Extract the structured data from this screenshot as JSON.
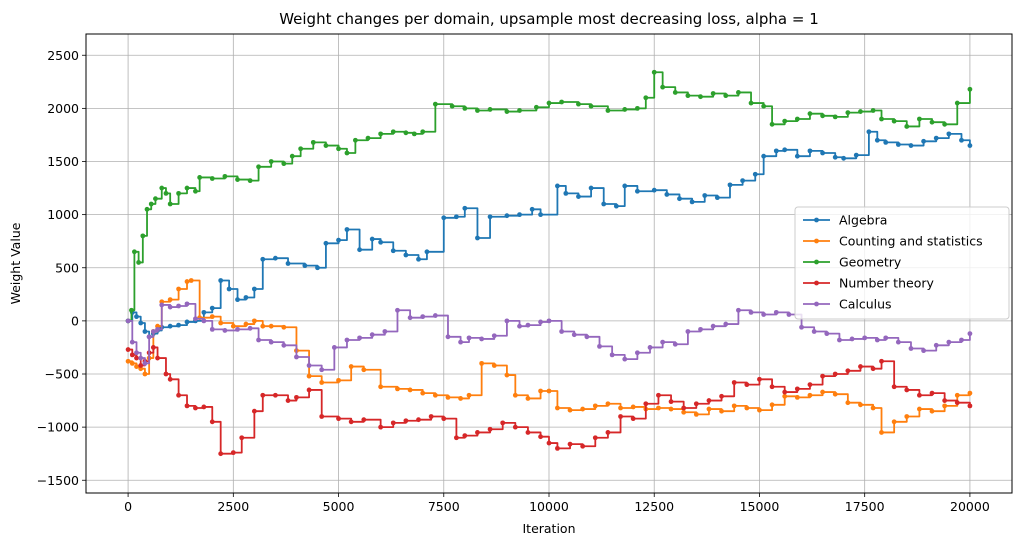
{
  "chart_data": {
    "type": "line",
    "title": "Weight changes per domain, upsample most decreasing loss, alpha = 1",
    "xlabel": "Iteration",
    "ylabel": "Weight Value",
    "xlim": [
      -1000,
      21000
    ],
    "ylim": [
      -1620,
      2700
    ],
    "xticks": [
      0,
      2500,
      5000,
      7500,
      10000,
      12500,
      15000,
      17500,
      20000
    ],
    "yticks": [
      -1500,
      -1000,
      -500,
      0,
      500,
      1000,
      1500,
      2000,
      2500
    ],
    "grid": true,
    "legend_position": "center-right",
    "series": [
      {
        "name": "Algebra",
        "color": "#1f77b4",
        "x": [
          0,
          100,
          200,
          300,
          400,
          500,
          600,
          700,
          800,
          1000,
          1200,
          1400,
          1600,
          1800,
          2000,
          2200,
          2400,
          2600,
          2800,
          3000,
          3200,
          3500,
          3800,
          4200,
          4500,
          4700,
          5000,
          5200,
          5500,
          5800,
          6000,
          6300,
          6600,
          6900,
          7100,
          7500,
          7800,
          8000,
          8300,
          8600,
          9000,
          9300,
          9600,
          9800,
          10200,
          10400,
          10700,
          11000,
          11300,
          11600,
          11800,
          12100,
          12500,
          12800,
          13100,
          13400,
          13700,
          14000,
          14300,
          14600,
          14900,
          15100,
          15400,
          15600,
          15900,
          16200,
          16500,
          16800,
          17000,
          17300,
          17600,
          17800,
          18000,
          18300,
          18600,
          18900,
          19200,
          19500,
          19800,
          20000
        ],
        "y": [
          0,
          80,
          40,
          -20,
          -100,
          -150,
          -120,
          -90,
          -60,
          -50,
          -40,
          -10,
          0,
          80,
          120,
          380,
          300,
          200,
          220,
          300,
          580,
          590,
          540,
          520,
          500,
          730,
          760,
          860,
          670,
          770,
          740,
          660,
          620,
          580,
          650,
          970,
          980,
          1060,
          780,
          980,
          990,
          1000,
          1050,
          1000,
          1270,
          1200,
          1170,
          1250,
          1100,
          1080,
          1270,
          1220,
          1230,
          1190,
          1150,
          1120,
          1180,
          1160,
          1280,
          1320,
          1380,
          1550,
          1600,
          1610,
          1550,
          1600,
          1580,
          1540,
          1530,
          1560,
          1780,
          1700,
          1680,
          1660,
          1650,
          1690,
          1720,
          1760,
          1700,
          1650
        ]
      },
      {
        "name": "Counting and statistics",
        "color": "#ff7f0e",
        "x": [
          0,
          100,
          200,
          300,
          400,
          500,
          600,
          700,
          800,
          1000,
          1200,
          1400,
          1500,
          1700,
          2000,
          2200,
          2500,
          2800,
          3000,
          3200,
          3400,
          3700,
          4000,
          4300,
          4600,
          5000,
          5300,
          5600,
          6000,
          6400,
          6700,
          7000,
          7300,
          7600,
          7900,
          8100,
          8400,
          8700,
          9000,
          9200,
          9500,
          9800,
          10000,
          10200,
          10500,
          10800,
          11100,
          11400,
          11700,
          12000,
          12300,
          12600,
          12900,
          13200,
          13500,
          13800,
          14100,
          14400,
          14700,
          15000,
          15300,
          15600,
          15900,
          16200,
          16500,
          16800,
          17100,
          17400,
          17700,
          17900,
          18200,
          18500,
          18800,
          19100,
          19400,
          19700,
          20000
        ],
        "y": [
          -380,
          -400,
          -430,
          -450,
          -500,
          -350,
          -100,
          -50,
          180,
          200,
          300,
          370,
          380,
          30,
          40,
          -20,
          -50,
          -30,
          0,
          -50,
          -50,
          -60,
          -280,
          -520,
          -580,
          -560,
          -430,
          -460,
          -620,
          -640,
          -650,
          -680,
          -700,
          -720,
          -730,
          -700,
          -400,
          -420,
          -510,
          -700,
          -730,
          -660,
          -660,
          -820,
          -840,
          -830,
          -800,
          -780,
          -820,
          -810,
          -830,
          -820,
          -830,
          -860,
          -880,
          -830,
          -850,
          -800,
          -820,
          -840,
          -790,
          -710,
          -720,
          -700,
          -670,
          -690,
          -770,
          -790,
          -820,
          -1050,
          -950,
          -900,
          -830,
          -850,
          -800,
          -700,
          -680
        ]
      },
      {
        "name": "Geometry",
        "color": "#2ca02c",
        "x": [
          0,
          80,
          150,
          250,
          350,
          450,
          550,
          650,
          800,
          900,
          1000,
          1200,
          1400,
          1600,
          1700,
          2000,
          2300,
          2600,
          2900,
          3100,
          3400,
          3700,
          3900,
          4100,
          4400,
          4700,
          5000,
          5200,
          5400,
          5700,
          6000,
          6300,
          6600,
          6800,
          7000,
          7300,
          7700,
          8000,
          8300,
          8600,
          9000,
          9300,
          9700,
          10000,
          10300,
          10700,
          11000,
          11400,
          11800,
          12100,
          12300,
          12500,
          12700,
          13000,
          13300,
          13600,
          13900,
          14200,
          14500,
          14800,
          15100,
          15300,
          15600,
          15900,
          16200,
          16500,
          16800,
          17100,
          17400,
          17700,
          17900,
          18200,
          18500,
          18800,
          19100,
          19400,
          19700,
          20000
        ],
        "y": [
          0,
          100,
          650,
          550,
          800,
          1050,
          1100,
          1150,
          1250,
          1200,
          1100,
          1200,
          1250,
          1220,
          1350,
          1340,
          1360,
          1330,
          1320,
          1450,
          1500,
          1480,
          1550,
          1620,
          1680,
          1650,
          1620,
          1580,
          1700,
          1720,
          1760,
          1780,
          1770,
          1760,
          1780,
          2040,
          2020,
          2000,
          1980,
          1990,
          1970,
          1980,
          2010,
          2050,
          2060,
          2040,
          2020,
          1980,
          1990,
          2000,
          2100,
          2340,
          2200,
          2150,
          2120,
          2110,
          2140,
          2120,
          2150,
          2050,
          2020,
          1850,
          1880,
          1900,
          1950,
          1930,
          1920,
          1960,
          1970,
          1980,
          1900,
          1880,
          1830,
          1900,
          1870,
          1850,
          2050,
          2180
        ]
      },
      {
        "name": "Number theory",
        "color": "#d62728",
        "x": [
          0,
          100,
          200,
          300,
          400,
          500,
          600,
          700,
          900,
          1000,
          1200,
          1400,
          1600,
          1800,
          2000,
          2200,
          2500,
          2700,
          3000,
          3200,
          3500,
          3800,
          4000,
          4300,
          4600,
          5000,
          5300,
          5600,
          6000,
          6300,
          6600,
          6900,
          7200,
          7500,
          7800,
          8000,
          8300,
          8600,
          8900,
          9200,
          9500,
          9800,
          10000,
          10200,
          10500,
          10800,
          11100,
          11400,
          11700,
          12000,
          12300,
          12600,
          12900,
          13200,
          13500,
          13800,
          14100,
          14400,
          14700,
          15000,
          15300,
          15600,
          15900,
          16200,
          16500,
          16800,
          17100,
          17400,
          17700,
          17900,
          18200,
          18500,
          18800,
          19100,
          19400,
          19700,
          20000
        ],
        "y": [
          -270,
          -320,
          -350,
          -420,
          -380,
          -300,
          -250,
          -350,
          -500,
          -550,
          -700,
          -800,
          -820,
          -810,
          -950,
          -1250,
          -1240,
          -1100,
          -850,
          -700,
          -700,
          -750,
          -720,
          -650,
          -900,
          -920,
          -950,
          -930,
          -1000,
          -960,
          -940,
          -930,
          -900,
          -920,
          -1100,
          -1080,
          -1050,
          -1020,
          -960,
          -1000,
          -1050,
          -1090,
          -1150,
          -1200,
          -1160,
          -1180,
          -1100,
          -1050,
          -900,
          -920,
          -780,
          -700,
          -760,
          -820,
          -780,
          -750,
          -710,
          -580,
          -600,
          -550,
          -620,
          -670,
          -640,
          -600,
          -520,
          -500,
          -470,
          -430,
          -450,
          -380,
          -620,
          -650,
          -700,
          -680,
          -750,
          -770,
          -800
        ]
      },
      {
        "name": "Calculus",
        "color": "#9467bd",
        "x": [
          0,
          100,
          200,
          300,
          400,
          500,
          600,
          700,
          800,
          1000,
          1200,
          1400,
          1600,
          1800,
          2000,
          2300,
          2600,
          2900,
          3100,
          3400,
          3700,
          4000,
          4300,
          4600,
          4900,
          5200,
          5500,
          5800,
          6100,
          6400,
          6700,
          7000,
          7300,
          7600,
          7900,
          8100,
          8400,
          8700,
          9000,
          9300,
          9500,
          9800,
          10000,
          10300,
          10600,
          10900,
          11200,
          11500,
          11800,
          12100,
          12400,
          12700,
          13000,
          13300,
          13600,
          13900,
          14200,
          14500,
          14800,
          15100,
          15400,
          15700,
          16000,
          16300,
          16600,
          16900,
          17200,
          17500,
          17800,
          18000,
          18300,
          18600,
          18900,
          19200,
          19500,
          19800,
          20000
        ],
        "y": [
          0,
          -200,
          -300,
          -350,
          -400,
          -150,
          -100,
          -80,
          150,
          130,
          140,
          160,
          20,
          0,
          -80,
          -90,
          -80,
          -70,
          -180,
          -200,
          -230,
          -340,
          -420,
          -460,
          -250,
          -180,
          -160,
          -130,
          -100,
          100,
          30,
          40,
          50,
          -150,
          -200,
          -160,
          -170,
          -140,
          0,
          -50,
          -40,
          -10,
          0,
          -100,
          -130,
          -150,
          -240,
          -320,
          -360,
          -300,
          -250,
          -200,
          -220,
          -100,
          -80,
          -50,
          -30,
          100,
          80,
          60,
          80,
          60,
          -60,
          -100,
          -120,
          -180,
          -170,
          -160,
          -180,
          -160,
          -200,
          -260,
          -280,
          -230,
          -200,
          -180,
          -120
        ]
      }
    ]
  }
}
